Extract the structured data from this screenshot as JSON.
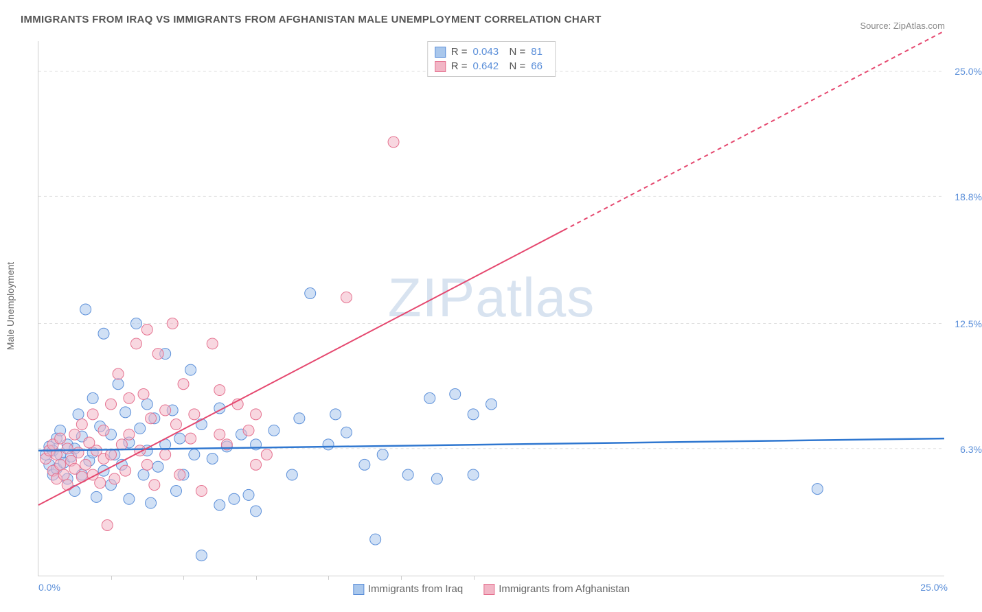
{
  "title": "IMMIGRANTS FROM IRAQ VS IMMIGRANTS FROM AFGHANISTAN MALE UNEMPLOYMENT CORRELATION CHART",
  "source_prefix": "Source: ",
  "source_name": "ZipAtlas.com",
  "watermark": "ZIPatlas",
  "y_axis_label": "Male Unemployment",
  "chart": {
    "type": "scatter",
    "xlim": [
      0,
      25
    ],
    "ylim": [
      0,
      26.5
    ],
    "x_tick_positions": [
      2.0,
      4.0,
      6.0,
      8.0,
      10.0,
      12.0
    ],
    "x_label_min": "0.0%",
    "x_label_max": "25.0%",
    "y_ticks": [
      {
        "v": 6.3,
        "label": "6.3%"
      },
      {
        "v": 12.5,
        "label": "12.5%"
      },
      {
        "v": 18.8,
        "label": "18.8%"
      },
      {
        "v": 25.0,
        "label": "25.0%"
      }
    ],
    "grid_color": "#e0e0e0",
    "background_color": "#ffffff",
    "marker_radius": 8,
    "marker_opacity": 0.55,
    "series": [
      {
        "key": "iraq",
        "label": "Immigrants from Iraq",
        "fill": "#a9c7ec",
        "stroke": "#5b8fd9",
        "r_label": "R =",
        "r_value": "0.043",
        "n_label": "N =",
        "n_value": "81",
        "regression": {
          "x1": 0,
          "y1": 6.2,
          "x2": 25,
          "y2": 6.8,
          "color": "#2f77d0",
          "width": 2.5,
          "dash": "none"
        },
        "points": [
          [
            0.2,
            6.0
          ],
          [
            0.3,
            5.5
          ],
          [
            0.3,
            6.4
          ],
          [
            0.4,
            5.0
          ],
          [
            0.4,
            6.2
          ],
          [
            0.5,
            6.8
          ],
          [
            0.5,
            5.3
          ],
          [
            0.6,
            6.0
          ],
          [
            0.6,
            7.2
          ],
          [
            0.7,
            5.6
          ],
          [
            0.8,
            6.5
          ],
          [
            0.8,
            4.8
          ],
          [
            0.9,
            5.9
          ],
          [
            1.0,
            6.3
          ],
          [
            1.0,
            4.2
          ],
          [
            1.1,
            8.0
          ],
          [
            1.2,
            5.0
          ],
          [
            1.2,
            6.9
          ],
          [
            1.3,
            13.2
          ],
          [
            1.4,
            5.7
          ],
          [
            1.5,
            8.8
          ],
          [
            1.5,
            6.1
          ],
          [
            1.6,
            3.9
          ],
          [
            1.7,
            7.4
          ],
          [
            1.8,
            12.0
          ],
          [
            1.8,
            5.2
          ],
          [
            2.0,
            7.0
          ],
          [
            2.0,
            4.5
          ],
          [
            2.1,
            6.0
          ],
          [
            2.2,
            9.5
          ],
          [
            2.3,
            5.5
          ],
          [
            2.4,
            8.1
          ],
          [
            2.5,
            6.6
          ],
          [
            2.5,
            3.8
          ],
          [
            2.7,
            12.5
          ],
          [
            2.8,
            7.3
          ],
          [
            2.9,
            5.0
          ],
          [
            3.0,
            8.5
          ],
          [
            3.0,
            6.2
          ],
          [
            3.1,
            3.6
          ],
          [
            3.2,
            7.8
          ],
          [
            3.3,
            5.4
          ],
          [
            3.5,
            11.0
          ],
          [
            3.5,
            6.5
          ],
          [
            3.7,
            8.2
          ],
          [
            3.8,
            4.2
          ],
          [
            3.9,
            6.8
          ],
          [
            4.0,
            5.0
          ],
          [
            4.2,
            10.2
          ],
          [
            4.3,
            6.0
          ],
          [
            4.5,
            1.0
          ],
          [
            4.5,
            7.5
          ],
          [
            4.8,
            5.8
          ],
          [
            5.0,
            8.3
          ],
          [
            5.0,
            3.5
          ],
          [
            5.2,
            6.4
          ],
          [
            5.4,
            3.8
          ],
          [
            5.6,
            7.0
          ],
          [
            5.8,
            4.0
          ],
          [
            6.0,
            3.2
          ],
          [
            6.0,
            6.5
          ],
          [
            6.5,
            7.2
          ],
          [
            7.0,
            5.0
          ],
          [
            7.2,
            7.8
          ],
          [
            7.5,
            14.0
          ],
          [
            8.0,
            6.5
          ],
          [
            8.2,
            8.0
          ],
          [
            8.5,
            7.1
          ],
          [
            9.0,
            5.5
          ],
          [
            9.3,
            1.8
          ],
          [
            9.5,
            6.0
          ],
          [
            10.2,
            5.0
          ],
          [
            10.8,
            8.8
          ],
          [
            11.0,
            4.8
          ],
          [
            11.5,
            9.0
          ],
          [
            12.0,
            8.0
          ],
          [
            12.0,
            5.0
          ],
          [
            12.5,
            8.5
          ],
          [
            21.5,
            4.3
          ]
        ]
      },
      {
        "key": "afghanistan",
        "label": "Immigrants from Afghanistan",
        "fill": "#f2b6c6",
        "stroke": "#e5718f",
        "r_label": "R =",
        "r_value": "0.642",
        "n_label": "N =",
        "n_value": "66",
        "regression": {
          "x1": 0,
          "y1": 3.5,
          "x2": 25,
          "y2": 27.0,
          "color": "#e5486f",
          "width": 2,
          "dash": "none",
          "dash_after_x": 14.5
        },
        "points": [
          [
            0.2,
            5.8
          ],
          [
            0.3,
            6.2
          ],
          [
            0.4,
            5.2
          ],
          [
            0.4,
            6.5
          ],
          [
            0.5,
            4.8
          ],
          [
            0.5,
            6.0
          ],
          [
            0.6,
            5.5
          ],
          [
            0.6,
            6.8
          ],
          [
            0.7,
            5.0
          ],
          [
            0.8,
            6.3
          ],
          [
            0.8,
            4.5
          ],
          [
            0.9,
            5.7
          ],
          [
            1.0,
            7.0
          ],
          [
            1.0,
            5.3
          ],
          [
            1.1,
            6.1
          ],
          [
            1.2,
            4.9
          ],
          [
            1.2,
            7.5
          ],
          [
            1.3,
            5.5
          ],
          [
            1.4,
            6.6
          ],
          [
            1.5,
            5.0
          ],
          [
            1.5,
            8.0
          ],
          [
            1.6,
            6.2
          ],
          [
            1.7,
            4.6
          ],
          [
            1.8,
            7.2
          ],
          [
            1.8,
            5.8
          ],
          [
            1.9,
            2.5
          ],
          [
            2.0,
            8.5
          ],
          [
            2.0,
            6.0
          ],
          [
            2.1,
            4.8
          ],
          [
            2.2,
            10.0
          ],
          [
            2.3,
            6.5
          ],
          [
            2.4,
            5.2
          ],
          [
            2.5,
            8.8
          ],
          [
            2.5,
            7.0
          ],
          [
            2.7,
            11.5
          ],
          [
            2.8,
            6.2
          ],
          [
            2.9,
            9.0
          ],
          [
            3.0,
            12.2
          ],
          [
            3.0,
            5.5
          ],
          [
            3.1,
            7.8
          ],
          [
            3.2,
            4.5
          ],
          [
            3.3,
            11.0
          ],
          [
            3.5,
            8.2
          ],
          [
            3.5,
            6.0
          ],
          [
            3.7,
            12.5
          ],
          [
            3.8,
            7.5
          ],
          [
            3.9,
            5.0
          ],
          [
            4.0,
            9.5
          ],
          [
            4.2,
            6.8
          ],
          [
            4.3,
            8.0
          ],
          [
            4.5,
            4.2
          ],
          [
            4.8,
            11.5
          ],
          [
            5.0,
            7.0
          ],
          [
            5.0,
            9.2
          ],
          [
            5.2,
            6.5
          ],
          [
            5.5,
            8.5
          ],
          [
            5.8,
            7.2
          ],
          [
            6.0,
            5.5
          ],
          [
            6.0,
            8.0
          ],
          [
            6.3,
            6.0
          ],
          [
            8.5,
            13.8
          ],
          [
            9.8,
            21.5
          ]
        ]
      }
    ]
  }
}
